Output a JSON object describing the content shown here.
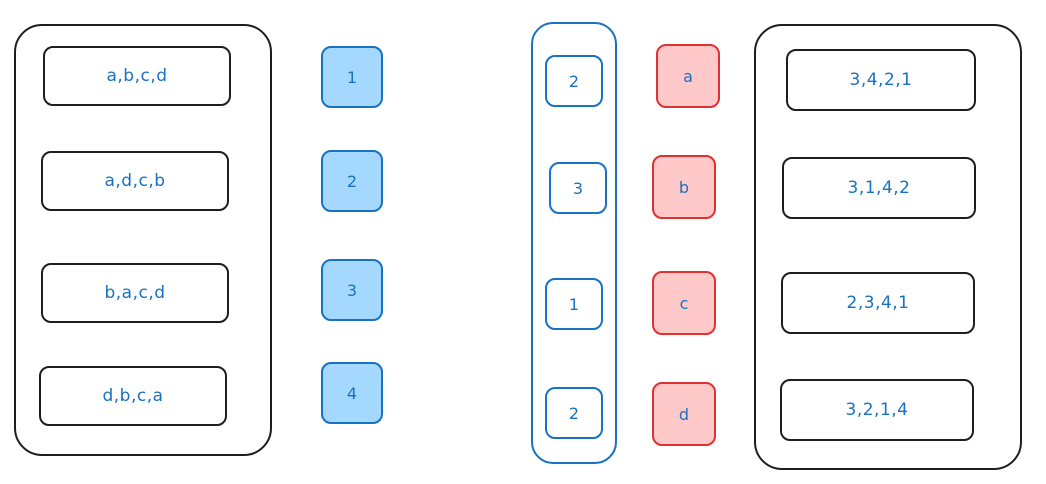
{
  "left_group": {
    "orders": [
      "a,b,c,d",
      "a,d,c,b",
      "b,a,c,d",
      "d,b,c,a"
    ],
    "numbers": [
      "1",
      "2",
      "3",
      "4"
    ]
  },
  "right_group": {
    "column_values": [
      "2",
      "3",
      "1",
      "2"
    ],
    "letters": [
      "a",
      "b",
      "c",
      "d"
    ],
    "orders": [
      "3,4,2,1",
      "3,1,4,2",
      "2,3,4,1",
      "3,2,1,4"
    ]
  },
  "colors": {
    "stroke": "#1e1e1e",
    "blue_text": "#1971c2",
    "blue_fill": "#a5d8ff",
    "red_fill": "#ffc9c9",
    "red_stroke": "#e03131"
  }
}
